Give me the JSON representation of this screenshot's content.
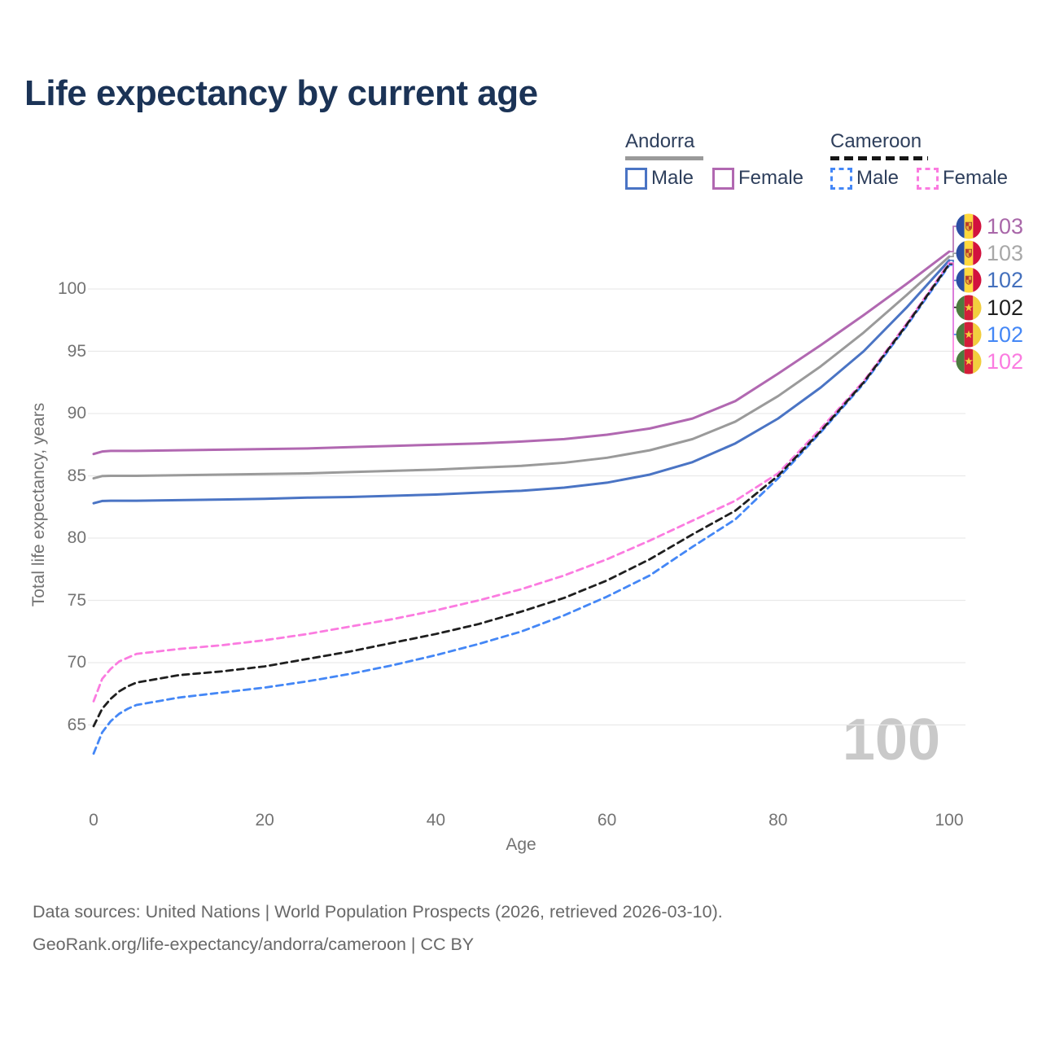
{
  "title": "Life expectancy by current age",
  "legend": {
    "groups": [
      {
        "name": "Andorra",
        "line_style": "solid",
        "underline_color": "#9a9a9a",
        "items": [
          {
            "label": "Male",
            "color": "#4a74c4"
          },
          {
            "label": "Female",
            "color": "#b168b1"
          }
        ]
      },
      {
        "name": "Cameroon",
        "line_style": "dashed",
        "underline_color": "#161616",
        "items": [
          {
            "label": "Male",
            "color": "#4487f6"
          },
          {
            "label": "Female",
            "color": "#fb7be0"
          }
        ]
      }
    ]
  },
  "y_axis": {
    "title": "Total life expectancy, years",
    "ticks": [
      65,
      70,
      75,
      80,
      85,
      90,
      95,
      100
    ]
  },
  "x_axis": {
    "title": "Age",
    "ticks": [
      0,
      20,
      40,
      60,
      80,
      100
    ]
  },
  "watermark": "100",
  "end_labels": [
    {
      "series": "Andorra Female",
      "value": "103",
      "color": "#a967a9",
      "flag": "andorra"
    },
    {
      "series": "Andorra Both sexes",
      "value": "103",
      "color": "#a8a8a8",
      "flag": "andorra"
    },
    {
      "series": "Andorra Male",
      "value": "102",
      "color": "#4470bd",
      "flag": "andorra"
    },
    {
      "series": "Cameroon Both sexes",
      "value": "102",
      "color": "#1f1f1f",
      "flag": "cameroon"
    },
    {
      "series": "Cameroon Male",
      "value": "102",
      "color": "#4487f6",
      "flag": "cameroon"
    },
    {
      "series": "Cameroon Female",
      "value": "102",
      "color": "#fb7be0",
      "flag": "cameroon"
    }
  ],
  "footer": {
    "line1": "Data sources: United Nations | World Population Prospects (2026, retrieved 2026-03-10).",
    "line2": "GeoRank.org/life-expectancy/andorra/cameroon | CC BY"
  },
  "chart_data": {
    "type": "line",
    "title": "Life expectancy by current age",
    "xlabel": "Age",
    "ylabel": "Total life expectancy, years",
    "xlim": [
      0,
      100
    ],
    "ylim": [
      62,
      103.5
    ],
    "grid": "horizontal-only",
    "legend_position": "top-right",
    "x": [
      0,
      1,
      2,
      3,
      4,
      5,
      10,
      15,
      20,
      25,
      30,
      35,
      40,
      45,
      50,
      55,
      60,
      65,
      70,
      75,
      80,
      85,
      90,
      95,
      100
    ],
    "series": [
      {
        "name": "Andorra Female",
        "color": "#b168b1",
        "dash": false,
        "values": [
          86.75,
          86.95,
          87.0,
          87.0,
          87.0,
          87.0,
          87.05,
          87.1,
          87.15,
          87.2,
          87.3,
          87.4,
          87.5,
          87.6,
          87.75,
          87.95,
          88.3,
          88.8,
          89.6,
          91.0,
          93.2,
          95.5,
          97.9,
          100.4,
          103.0
        ]
      },
      {
        "name": "Andorra Both sexes",
        "color": "#9a9a9a",
        "dash": false,
        "values": [
          84.8,
          84.98,
          85.0,
          85.0,
          85.0,
          85.0,
          85.05,
          85.1,
          85.15,
          85.2,
          85.3,
          85.4,
          85.5,
          85.65,
          85.8,
          86.05,
          86.45,
          87.05,
          87.95,
          89.35,
          91.4,
          93.8,
          96.5,
          99.5,
          102.6
        ]
      },
      {
        "name": "Andorra Male",
        "color": "#4a74c4",
        "dash": false,
        "values": [
          82.8,
          82.98,
          83.0,
          83.0,
          83.0,
          83.0,
          83.05,
          83.1,
          83.15,
          83.25,
          83.3,
          83.4,
          83.5,
          83.65,
          83.8,
          84.05,
          84.45,
          85.1,
          86.1,
          87.6,
          89.6,
          92.1,
          95.0,
          98.5,
          102.3
        ]
      },
      {
        "name": "Cameroon Male",
        "color": "#4487f6",
        "dash": true,
        "values": [
          62.7,
          64.4,
          65.3,
          65.9,
          66.3,
          66.6,
          67.2,
          67.6,
          68.0,
          68.5,
          69.1,
          69.8,
          70.6,
          71.5,
          72.5,
          73.8,
          75.3,
          77.0,
          79.3,
          81.5,
          84.8,
          88.5,
          92.4,
          97.0,
          101.9
        ]
      },
      {
        "name": "Cameroon Female",
        "color": "#fb7be0",
        "dash": true,
        "values": [
          66.9,
          68.7,
          69.5,
          70.1,
          70.4,
          70.7,
          71.1,
          71.4,
          71.8,
          72.3,
          72.9,
          73.5,
          74.2,
          75.0,
          75.9,
          77.0,
          78.3,
          79.8,
          81.4,
          83.0,
          85.2,
          88.8,
          92.6,
          97.2,
          102.1
        ]
      },
      {
        "name": "Cameroon Both sexes",
        "color": "#1f1f1f",
        "dash": true,
        "values": [
          64.9,
          66.3,
          67.1,
          67.7,
          68.1,
          68.4,
          69.0,
          69.3,
          69.7,
          70.3,
          70.9,
          71.6,
          72.3,
          73.1,
          74.1,
          75.2,
          76.6,
          78.3,
          80.3,
          82.2,
          85.0,
          88.6,
          92.5,
          97.1,
          102.0
        ]
      }
    ]
  }
}
